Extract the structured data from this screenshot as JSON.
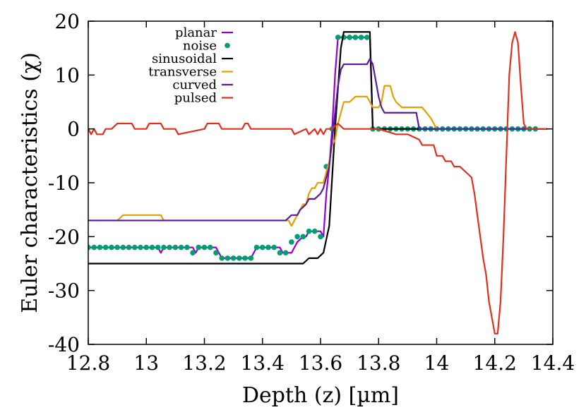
{
  "chart_data": {
    "type": "line",
    "title": "",
    "xlabel": "Depth (z) [µm]",
    "ylabel": "Euler characteristics (χ)",
    "xlim": [
      12.8,
      14.4
    ],
    "ylim": [
      -40,
      20
    ],
    "xticks": [
      12.8,
      13,
      13.2,
      13.4,
      13.6,
      13.8,
      14,
      14.2,
      14.4
    ],
    "xtick_labels": [
      "12.8",
      "13",
      "13.2",
      "13.4",
      "13.6",
      "13.8",
      "14",
      "14.2",
      "14.4"
    ],
    "yticks": [
      -40,
      -30,
      -20,
      -10,
      0,
      10,
      20
    ],
    "ytick_labels": [
      "-40",
      "-30",
      "-20",
      "-10",
      "0",
      "10",
      "20"
    ],
    "grid": false,
    "legend_position": "top-left",
    "series": [
      {
        "name": "planar",
        "color": "#9400d3",
        "style": "line",
        "x": [
          12.8,
          12.9,
          13.0,
          13.02,
          13.04,
          13.05,
          13.06,
          13.1,
          13.16,
          13.17,
          13.18,
          13.2,
          13.22,
          13.24,
          13.25,
          13.26,
          13.28,
          13.32,
          13.36,
          13.37,
          13.38,
          13.42,
          13.46,
          13.47,
          13.48,
          13.5,
          13.52,
          13.54,
          13.55,
          13.56,
          13.58,
          13.6,
          13.61,
          13.62,
          13.63,
          13.64,
          13.65,
          13.66,
          13.67,
          13.7,
          13.73,
          13.76,
          13.77,
          13.78,
          13.8,
          13.9,
          14.0,
          14.1,
          14.2,
          14.3,
          14.38
        ],
        "y": [
          -22,
          -22,
          -22,
          -22,
          -22,
          -23,
          -22,
          -22,
          -22,
          -23,
          -22,
          -22,
          -22,
          -22,
          -23,
          -24,
          -24,
          -24,
          -24,
          -23,
          -22,
          -22,
          -22,
          -23,
          -23,
          -23,
          -21,
          -20,
          -20,
          -19,
          -19,
          -19,
          -20,
          -12,
          -7,
          0,
          10,
          17,
          17,
          17,
          17,
          17,
          17,
          0,
          0,
          0,
          0,
          0,
          0,
          0,
          0
        ]
      },
      {
        "name": "noise",
        "color": "#009e73",
        "style": "points",
        "x": [
          12.8,
          12.82,
          12.84,
          12.86,
          12.88,
          12.9,
          12.92,
          12.94,
          12.96,
          12.98,
          13.0,
          13.02,
          13.04,
          13.06,
          13.08,
          13.1,
          13.12,
          13.14,
          13.16,
          13.18,
          13.2,
          13.22,
          13.24,
          13.26,
          13.28,
          13.3,
          13.32,
          13.34,
          13.36,
          13.38,
          13.4,
          13.42,
          13.44,
          13.46,
          13.48,
          13.5,
          13.52,
          13.54,
          13.56,
          13.58,
          13.6,
          13.62,
          13.64,
          13.66,
          13.68,
          13.7,
          13.72,
          13.74,
          13.76,
          13.78,
          13.8,
          13.82,
          13.84,
          13.86,
          13.88,
          13.9,
          13.92,
          13.94,
          13.96,
          13.98,
          14.0,
          14.02,
          14.04,
          14.06,
          14.08,
          14.1,
          14.12,
          14.14,
          14.16,
          14.18,
          14.2,
          14.22,
          14.24,
          14.26,
          14.28,
          14.3,
          14.32,
          14.34
        ],
        "y": [
          -22,
          -22,
          -22,
          -22,
          -22,
          -22,
          -22,
          -22,
          -22,
          -22,
          -22,
          -22,
          -22,
          -22,
          -22,
          -22,
          -22,
          -22,
          -23,
          -22,
          -22,
          -22,
          -23,
          -24,
          -24,
          -24,
          -24,
          -24,
          -24,
          -22,
          -22,
          -22,
          -22,
          -23,
          -23,
          -21,
          -20,
          -20,
          -19,
          -19,
          -20,
          -7,
          0,
          17,
          17,
          17,
          17,
          17,
          17,
          0,
          0,
          0,
          0,
          0,
          0,
          0,
          0,
          0,
          0,
          0,
          0,
          0,
          0,
          0,
          0,
          0,
          0,
          0,
          0,
          0,
          0,
          0,
          0,
          0,
          0,
          0,
          0,
          0
        ]
      },
      {
        "name": "sinusoidal",
        "color": "#000000",
        "style": "line",
        "x": [
          12.8,
          13.0,
          13.2,
          13.4,
          13.54,
          13.56,
          13.59,
          13.61,
          13.63,
          13.65,
          13.67,
          13.68,
          13.77,
          13.78,
          13.8,
          14.0,
          14.2,
          14.38
        ],
        "y": [
          -25,
          -25,
          -25,
          -25,
          -25,
          -24,
          -24,
          -23,
          -18,
          0,
          15,
          18,
          18,
          0,
          0,
          0,
          0,
          0
        ]
      },
      {
        "name": "transverse",
        "color": "#e69f00",
        "style": "line",
        "x": [
          12.8,
          12.9,
          12.92,
          13.05,
          13.06,
          13.2,
          13.49,
          13.5,
          13.51,
          13.52,
          13.53,
          13.54,
          13.55,
          13.56,
          13.57,
          13.58,
          13.59,
          13.6,
          13.61,
          13.62,
          13.63,
          13.64,
          13.65,
          13.66,
          13.67,
          13.68,
          13.7,
          13.72,
          13.74,
          13.76,
          13.78,
          13.8,
          13.81,
          13.82,
          13.84,
          13.85,
          13.86,
          13.88,
          13.9,
          13.95,
          13.98,
          14.0,
          14.1,
          14.38
        ],
        "y": [
          -17,
          -17,
          -16,
          -16,
          -17,
          -17,
          -17,
          -18,
          -17,
          -16,
          -15,
          -14,
          -14,
          -12,
          -11,
          -11,
          -10,
          -10,
          -10,
          -8,
          -6,
          -3,
          -2,
          1,
          3,
          5,
          5,
          6,
          6,
          6,
          4,
          4,
          5,
          8,
          8,
          6,
          5,
          4,
          4,
          4,
          2,
          0,
          0,
          0
        ]
      },
      {
        "name": "curved",
        "color": "#5a1a9e",
        "style": "line",
        "x": [
          12.8,
          13.0,
          13.2,
          13.4,
          13.48,
          13.5,
          13.52,
          13.53,
          13.55,
          13.56,
          13.58,
          13.6,
          13.61,
          13.62,
          13.63,
          13.64,
          13.65,
          13.66,
          13.67,
          13.68,
          13.72,
          13.74,
          13.76,
          13.77,
          13.78,
          13.79,
          13.8,
          13.81,
          13.82,
          13.9,
          13.93,
          13.94,
          14.0,
          14.2,
          14.38
        ],
        "y": [
          -17,
          -17,
          -17,
          -17,
          -17,
          -16,
          -16,
          -15,
          -14,
          -13,
          -13,
          -12,
          -11,
          -9,
          -7,
          -2,
          3,
          8,
          11,
          12,
          12,
          12,
          12,
          13,
          12,
          9,
          6,
          4,
          3,
          3,
          3,
          0,
          0,
          0,
          0
        ]
      },
      {
        "name": "pulsed",
        "color": "#e03020",
        "style": "line",
        "x": [
          12.8,
          12.81,
          12.82,
          12.83,
          12.85,
          12.86,
          12.88,
          12.9,
          12.95,
          12.96,
          13.0,
          13.01,
          13.05,
          13.06,
          13.1,
          13.11,
          13.2,
          13.21,
          13.25,
          13.26,
          13.33,
          13.34,
          13.35,
          13.36,
          13.5,
          13.51,
          13.55,
          13.56,
          13.58,
          13.59,
          13.6,
          13.61,
          13.62,
          13.64,
          13.66,
          13.68,
          13.7,
          13.72,
          13.74,
          13.76,
          13.78,
          13.8,
          13.86,
          13.9,
          13.94,
          13.95,
          13.97,
          13.99,
          14.0,
          14.02,
          14.03,
          14.05,
          14.06,
          14.08,
          14.1,
          14.12,
          14.13,
          14.14,
          14.15,
          14.16,
          14.17,
          14.18,
          14.19,
          14.2,
          14.21,
          14.22,
          14.23,
          14.24,
          14.25,
          14.26,
          14.27,
          14.28,
          14.29,
          14.3,
          14.31,
          14.32,
          14.33,
          14.34,
          14.38
        ],
        "y": [
          0,
          -1,
          0,
          -1,
          -1,
          0,
          0,
          1,
          1,
          0,
          0,
          1,
          1,
          0,
          0,
          -1,
          0,
          1,
          1,
          0,
          0,
          1,
          1,
          0,
          0,
          -1,
          0,
          -1,
          0,
          -1,
          0,
          -1,
          0,
          0,
          1,
          0,
          0,
          0,
          0,
          0,
          0,
          0,
          -1,
          -1,
          -2,
          -3,
          -3,
          -3,
          -5,
          -5,
          -6,
          -6,
          -7,
          -7,
          -8,
          -9,
          -12,
          -16,
          -20,
          -24,
          -27,
          -32,
          -35,
          -38,
          -38,
          -32,
          -20,
          -5,
          10,
          16,
          18,
          16,
          8,
          1,
          0,
          0,
          0,
          0,
          0
        ]
      }
    ]
  }
}
